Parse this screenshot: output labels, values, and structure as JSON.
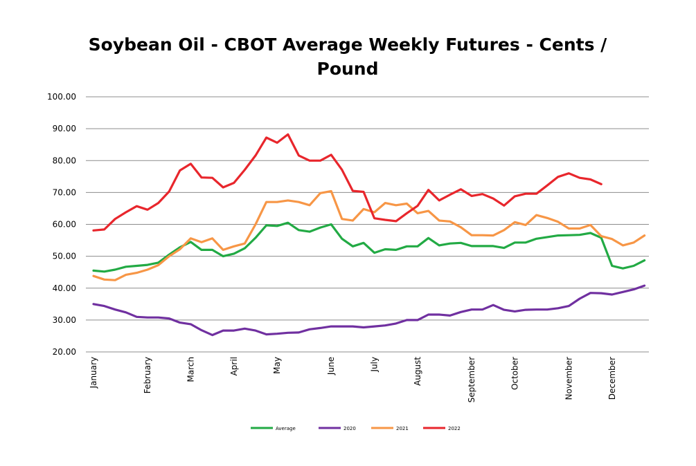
{
  "chart_data": {
    "type": "line",
    "title_line1": "Soybean Oil - CBOT Average Weekly Futures - Cents /",
    "title_line2": "Pound",
    "xlabel": "",
    "ylabel": "",
    "ylim": [
      20,
      100
    ],
    "yticks": [
      "20.00",
      "30.00",
      "40.00",
      "50.00",
      "60.00",
      "70.00",
      "80.00",
      "90.00",
      "100.00"
    ],
    "grid": true,
    "legend_position": "bottom",
    "x_weeks": [
      1,
      2,
      3,
      4,
      5,
      6,
      7,
      8,
      9,
      10,
      11,
      12,
      13,
      14,
      15,
      16,
      17,
      18,
      19,
      20,
      21,
      22,
      23,
      24,
      25,
      26,
      27,
      28,
      29,
      30,
      31,
      32,
      33,
      34,
      35,
      36,
      37,
      38,
      39,
      40,
      41,
      42,
      43,
      44,
      45,
      46,
      47,
      48,
      49,
      50,
      51,
      52
    ],
    "month_labels": [
      {
        "label": "January",
        "week": 1
      },
      {
        "label": "February",
        "week": 6
      },
      {
        "label": "March",
        "week": 10
      },
      {
        "label": "April",
        "week": 14
      },
      {
        "label": "May",
        "week": 18
      },
      {
        "label": "June",
        "week": 23
      },
      {
        "label": "July",
        "week": 27
      },
      {
        "label": "August",
        "week": 31
      },
      {
        "label": "September",
        "week": 36
      },
      {
        "label": "October",
        "week": 40
      },
      {
        "label": "November",
        "week": 45
      },
      {
        "label": "December",
        "week": 49
      }
    ],
    "series": [
      {
        "name": "Average",
        "color": "#22AA44",
        "values": [
          45.5,
          45.2,
          45.8,
          46.7,
          47.0,
          47.3,
          48.0,
          50.5,
          52.8,
          54.5,
          52.0,
          52.0,
          50.0,
          50.8,
          52.5,
          55.8,
          59.7,
          59.5,
          60.5,
          58.2,
          57.7,
          59.0,
          60.0,
          55.5,
          53.1,
          54.2,
          51.1,
          52.2,
          52.0,
          53.1,
          53.1,
          55.7,
          53.4,
          54.0,
          54.2,
          53.2,
          53.2,
          53.2,
          52.6,
          54.3,
          54.3,
          55.5,
          56.0,
          56.5,
          56.6,
          56.7,
          57.3,
          55.8,
          47.0,
          46.2,
          47.0,
          48.7
        ]
      },
      {
        "name": "2020",
        "color": "#7030A0",
        "values": [
          35.0,
          34.4,
          33.3,
          32.4,
          31.0,
          30.8,
          30.8,
          30.5,
          29.2,
          28.7,
          26.8,
          25.3,
          26.7,
          26.7,
          27.3,
          26.7,
          25.5,
          25.7,
          26.0,
          26.1,
          27.1,
          27.5,
          28.0,
          28.0,
          28.0,
          27.7,
          28.0,
          28.3,
          28.9,
          30.0,
          30.0,
          31.7,
          31.7,
          31.4,
          32.5,
          33.3,
          33.3,
          34.7,
          33.2,
          32.7,
          33.2,
          33.3,
          33.3,
          33.7,
          34.4,
          36.7,
          38.5,
          38.4,
          38.0,
          38.8,
          39.6,
          40.8
        ]
      },
      {
        "name": "2021",
        "color": "#F79646",
        "values": [
          43.8,
          42.7,
          42.5,
          44.2,
          44.8,
          45.8,
          47.2,
          50.0,
          52.2,
          55.6,
          54.4,
          55.6,
          52.0,
          53.1,
          54.0,
          60.0,
          67.0,
          67.0,
          67.5,
          67.0,
          66.0,
          69.8,
          70.4,
          61.7,
          61.2,
          64.8,
          63.8,
          66.7,
          66.0,
          66.5,
          63.5,
          64.2,
          61.2,
          60.9,
          59.1,
          56.6,
          56.6,
          56.5,
          58.2,
          60.7,
          59.8,
          62.9,
          62.0,
          60.8,
          58.7,
          58.7,
          59.8,
          56.3,
          55.4,
          53.4,
          54.3,
          56.5
        ]
      },
      {
        "name": "2022",
        "color": "#E8262C",
        "values": [
          58.1,
          58.4,
          61.7,
          63.8,
          65.7,
          64.6,
          66.7,
          70.3,
          76.9,
          79.0,
          74.7,
          74.6,
          71.6,
          73.0,
          77.1,
          81.6,
          87.2,
          85.6,
          88.2,
          81.6,
          80.0,
          80.0,
          81.8,
          77.1,
          70.5,
          70.2,
          61.9,
          61.4,
          61.0,
          63.5,
          65.8,
          70.8,
          67.5,
          69.3,
          71.0,
          68.9,
          69.5,
          68.1,
          65.9,
          68.8,
          69.6,
          69.6,
          72.2,
          74.9,
          76.0,
          74.6,
          74.1,
          72.6
        ]
      }
    ]
  }
}
